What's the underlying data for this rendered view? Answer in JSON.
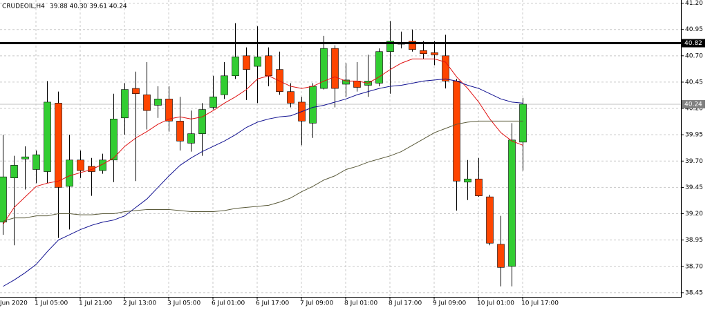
{
  "chart_data": {
    "type": "candlestick",
    "title": "CRUDEOIL,H4",
    "ohlc_text": "39.88 40.30 39.61 40.24",
    "x_label_left": "Jun 2020",
    "categories": [
      null,
      null,
      null,
      "1 Jul 05:00",
      null,
      null,
      null,
      "1 Jul 21:00",
      null,
      null,
      null,
      "2 Jul 13:00",
      null,
      null,
      null,
      "3 Jul 05:00",
      null,
      null,
      null,
      "6 Jul 01:00",
      null,
      null,
      null,
      "6 Jul 17:00",
      null,
      null,
      null,
      "7 Jul 09:00",
      null,
      null,
      null,
      "8 Jul 01:00",
      null,
      null,
      null,
      "8 Jul 17:00",
      null,
      null,
      null,
      "9 Jul 09:00",
      null,
      null,
      null,
      "10 Jul 01:00",
      null,
      null,
      null,
      "10 Jul 17:00"
    ],
    "open": [
      39.12,
      39.54,
      39.72,
      39.62,
      39.6,
      40.25,
      39.46,
      39.71,
      39.65,
      39.61,
      39.71,
      40.11,
      40.39,
      40.33,
      40.23,
      40.29,
      40.08,
      39.87,
      39.96,
      40.21,
      40.33,
      40.51,
      40.7,
      40.6,
      40.7,
      40.57,
      40.36,
      40.26,
      40.06,
      40.39,
      40.77,
      40.43,
      40.46,
      40.42,
      40.44,
      40.74,
      40.81,
      40.84,
      40.75,
      40.73,
      40.7,
      40.46,
      39.5,
      39.53,
      39.36,
      38.91,
      38.7,
      39.88
    ],
    "high": [
      39.95,
      39.75,
      39.84,
      39.8,
      40.46,
      40.36,
      39.95,
      39.8,
      39.73,
      39.77,
      40.34,
      40.44,
      40.55,
      40.64,
      40.41,
      40.41,
      40.31,
      40.18,
      40.25,
      40.51,
      40.64,
      41.01,
      40.78,
      40.98,
      40.78,
      40.74,
      40.44,
      40.31,
      40.44,
      40.89,
      40.8,
      40.63,
      40.64,
      40.71,
      40.77,
      41.03,
      40.93,
      40.95,
      40.84,
      40.84,
      40.9,
      40.48,
      39.71,
      39.73,
      39.38,
      39.18,
      40.06,
      40.3
    ],
    "low": [
      39.0,
      38.9,
      39.43,
      39.49,
      39.49,
      38.97,
      39.05,
      39.54,
      39.37,
      39.58,
      39.5,
      39.95,
      39.51,
      40.0,
      40.11,
      39.98,
      39.8,
      39.79,
      39.75,
      40.19,
      40.29,
      40.48,
      40.28,
      40.25,
      40.41,
      40.33,
      40.21,
      39.85,
      39.92,
      40.38,
      40.21,
      40.31,
      40.36,
      40.31,
      40.41,
      40.34,
      40.77,
      40.74,
      40.67,
      40.61,
      40.39,
      39.23,
      39.33,
      39.36,
      38.9,
      38.51,
      38.51,
      39.61
    ],
    "close": [
      39.55,
      39.66,
      39.74,
      39.76,
      40.26,
      39.45,
      39.71,
      39.61,
      39.6,
      39.71,
      40.1,
      40.38,
      40.34,
      40.18,
      40.29,
      40.08,
      39.89,
      39.96,
      40.19,
      40.31,
      40.51,
      40.69,
      40.57,
      40.69,
      40.51,
      40.36,
      40.25,
      40.08,
      40.41,
      40.77,
      40.39,
      40.47,
      40.4,
      40.46,
      40.74,
      40.84,
      40.82,
      40.76,
      40.72,
      40.71,
      40.46,
      39.51,
      39.53,
      39.37,
      38.92,
      38.69,
      39.9,
      40.24
    ],
    "up_color": "#32cd32",
    "down_color": "#ff4500",
    "series": [
      {
        "color": "#e01010",
        "values": [
          39.1,
          39.26,
          39.36,
          39.46,
          39.49,
          39.51,
          39.56,
          39.59,
          39.62,
          39.67,
          39.73,
          39.84,
          39.92,
          39.98,
          40.05,
          40.1,
          40.12,
          40.1,
          40.12,
          40.18,
          40.25,
          40.31,
          40.38,
          40.48,
          40.51,
          40.46,
          40.41,
          40.39,
          40.41,
          40.46,
          40.5,
          40.46,
          40.46,
          40.44,
          40.5,
          40.57,
          40.63,
          40.67,
          40.67,
          40.67,
          40.64,
          40.5,
          40.39,
          40.26,
          40.1,
          39.97,
          39.89,
          39.85
        ]
      },
      {
        "color": "#101090",
        "values": [
          38.51,
          38.57,
          38.64,
          38.72,
          38.84,
          38.95,
          39.0,
          39.05,
          39.09,
          39.12,
          39.14,
          39.18,
          39.26,
          39.34,
          39.45,
          39.56,
          39.66,
          39.73,
          39.79,
          39.84,
          39.89,
          39.95,
          40.02,
          40.07,
          40.1,
          40.12,
          40.13,
          40.17,
          40.21,
          40.23,
          40.26,
          40.29,
          40.33,
          40.36,
          40.39,
          40.41,
          40.42,
          40.44,
          40.46,
          40.47,
          40.48,
          40.46,
          40.42,
          40.39,
          40.34,
          40.29,
          40.26,
          40.25
        ]
      },
      {
        "color": "#5a5a3a",
        "values": [
          39.13,
          39.16,
          39.16,
          39.18,
          39.18,
          39.2,
          39.2,
          39.19,
          39.19,
          39.2,
          39.2,
          39.22,
          39.23,
          39.24,
          39.24,
          39.24,
          39.23,
          39.22,
          39.22,
          39.22,
          39.23,
          39.25,
          39.26,
          39.27,
          39.28,
          39.31,
          39.35,
          39.41,
          39.46,
          39.52,
          39.56,
          39.62,
          39.65,
          39.69,
          39.72,
          39.75,
          39.79,
          39.85,
          39.91,
          39.97,
          40.01,
          40.05,
          40.07,
          40.08,
          40.08,
          40.08,
          40.08,
          40.08
        ]
      }
    ],
    "hline": {
      "value": 40.82,
      "label": "40.82",
      "color": "#000000"
    },
    "bid_line": {
      "value": 40.24,
      "label": "40.24",
      "color": "#c0c0c0"
    },
    "ylim": [
      38.41,
      41.23
    ],
    "yticks": [
      {
        "value": 38.45,
        "label": "38.45"
      },
      {
        "value": 38.7,
        "label": "38.70"
      },
      {
        "value": 38.95,
        "label": "38.95"
      },
      {
        "value": 39.2,
        "label": "39.20"
      },
      {
        "value": 39.45,
        "label": "39.45"
      },
      {
        "value": 39.7,
        "label": "39.70"
      },
      {
        "value": 39.95,
        "label": "39.95"
      },
      {
        "value": 40.2,
        "label": "40.20"
      },
      {
        "value": 40.45,
        "label": "40.45"
      },
      {
        "value": 40.7,
        "label": "40.70"
      },
      {
        "value": 40.95,
        "label": "40.95"
      },
      {
        "value": 41.2,
        "label": "41.20"
      }
    ],
    "grid": true
  }
}
